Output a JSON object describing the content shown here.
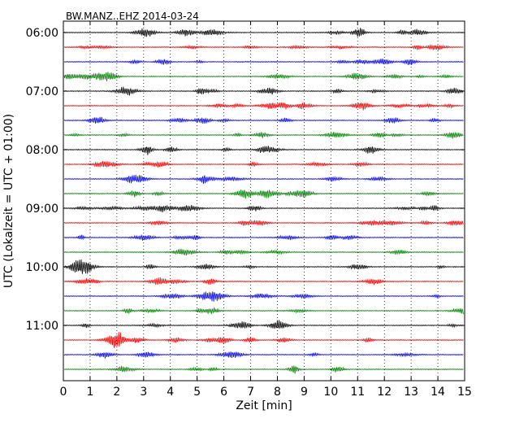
{
  "chart_data": {
    "type": "line",
    "title": "BW.MANZ..EHZ 2014-03-24",
    "xlabel": "Zeit  [min]",
    "ylabel": "UTC (Lokalzeit = UTC + 01:00)",
    "xlim": [
      0,
      15
    ],
    "x_ticks": [
      0,
      1,
      2,
      3,
      4,
      5,
      6,
      7,
      8,
      9,
      10,
      11,
      12,
      13,
      14,
      15
    ],
    "y_tick_labels": [
      "06:00",
      "07:00",
      "08:00",
      "09:00",
      "10:00",
      "11:00"
    ],
    "rows_per_hour": 4,
    "row_minutes": 15,
    "start_time": "06:00",
    "trace_count": 24,
    "trace_colors": [
      "#000000",
      "#ff0000",
      "#0000ff",
      "#008000"
    ],
    "grid": "vertical dotted at each minute"
  }
}
